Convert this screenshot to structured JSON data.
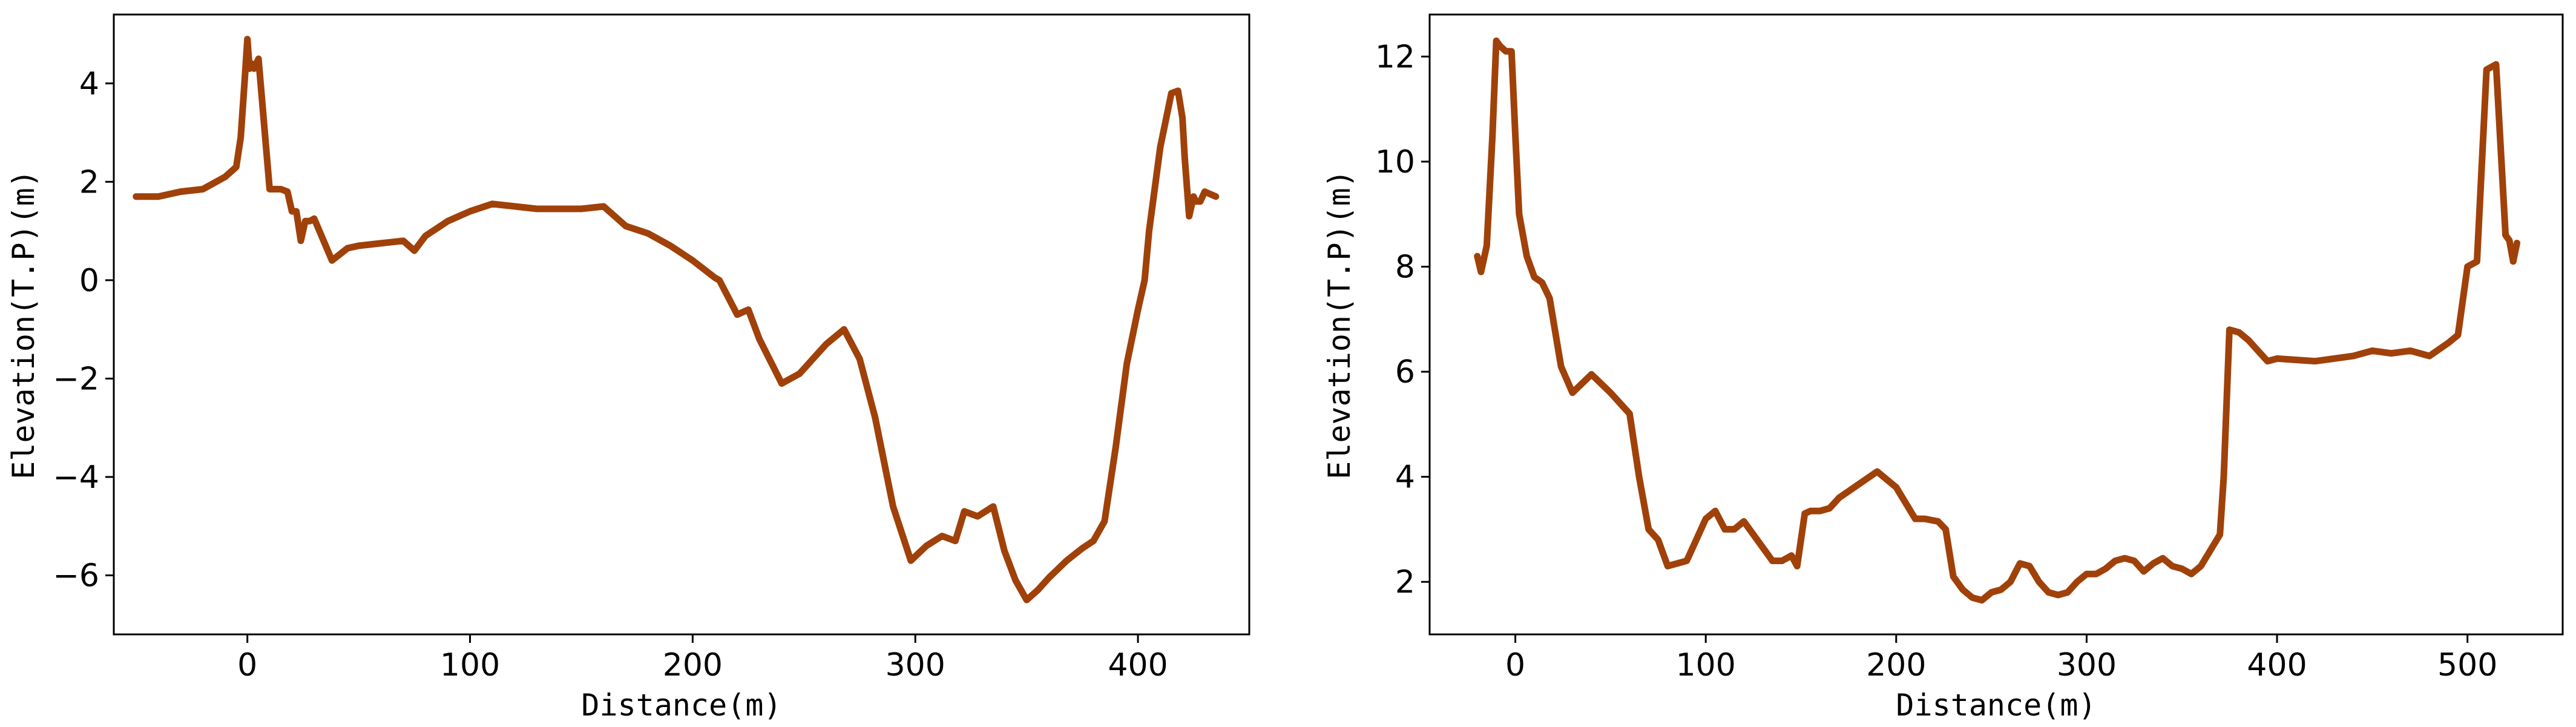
{
  "chart_data": [
    {
      "type": "line",
      "title": "",
      "xlabel": "Distance(m)",
      "ylabel": "Elevation(T.P)(m)",
      "xlim": [
        -60,
        450
      ],
      "ylim": [
        -7.2,
        5.4
      ],
      "xticks": [
        0,
        100,
        200,
        300,
        400
      ],
      "yticks": [
        -6,
        -4,
        -2,
        0,
        2,
        4
      ],
      "grid": false,
      "color": "#A0410A",
      "x": [
        -50,
        -40,
        -30,
        -20,
        -10,
        -5,
        -3,
        -1,
        0,
        1,
        2,
        3,
        5,
        10,
        15,
        18,
        20,
        22,
        24,
        26,
        28,
        30,
        38,
        45,
        50,
        60,
        70,
        75,
        80,
        90,
        100,
        110,
        130,
        150,
        160,
        170,
        180,
        190,
        200,
        210,
        212,
        220,
        225,
        230,
        240,
        248,
        255,
        260,
        268,
        275,
        282,
        290,
        298,
        305,
        312,
        318,
        322,
        328,
        335,
        340,
        345,
        350,
        355,
        360,
        368,
        375,
        380,
        385,
        390,
        395,
        400,
        403,
        405,
        410,
        415,
        418,
        420,
        421,
        423,
        425,
        426,
        428,
        430,
        435
      ],
      "y": [
        1.7,
        1.7,
        1.8,
        1.85,
        2.1,
        2.3,
        2.9,
        4.2,
        4.9,
        4.3,
        4.4,
        4.3,
        4.5,
        1.85,
        1.85,
        1.8,
        1.4,
        1.4,
        0.8,
        1.2,
        1.2,
        1.25,
        0.4,
        0.65,
        0.7,
        0.75,
        0.8,
        0.6,
        0.9,
        1.2,
        1.4,
        1.55,
        1.45,
        1.45,
        1.5,
        1.1,
        0.95,
        0.7,
        0.4,
        0.05,
        0.0,
        -0.7,
        -0.6,
        -1.2,
        -2.1,
        -1.9,
        -1.55,
        -1.3,
        -1.0,
        -1.6,
        -2.8,
        -4.6,
        -5.7,
        -5.4,
        -5.2,
        -5.3,
        -4.7,
        -4.8,
        -4.6,
        -5.5,
        -6.1,
        -6.5,
        -6.3,
        -6.05,
        -5.7,
        -5.45,
        -5.3,
        -4.9,
        -3.4,
        -1.7,
        -0.6,
        0.0,
        1.0,
        2.7,
        3.8,
        3.85,
        3.3,
        2.5,
        1.3,
        1.7,
        1.6,
        1.6,
        1.8,
        1.7
      ]
    },
    {
      "type": "line",
      "title": "",
      "xlabel": "Distance(m)",
      "ylabel": "Elevation(T.P)(m)",
      "xlim": [
        -45,
        550
      ],
      "ylim": [
        1.0,
        12.8
      ],
      "xticks": [
        0,
        100,
        200,
        300,
        400,
        500
      ],
      "yticks": [
        2,
        4,
        6,
        8,
        10,
        12
      ],
      "grid": false,
      "color": "#A0410A",
      "x": [
        -20,
        -18,
        -15,
        -12,
        -10,
        -8,
        -5,
        -2,
        0,
        2,
        6,
        10,
        14,
        18,
        24,
        30,
        40,
        50,
        60,
        65,
        70,
        75,
        80,
        85,
        90,
        95,
        100,
        105,
        110,
        115,
        120,
        125,
        130,
        135,
        140,
        145,
        148,
        152,
        155,
        160,
        165,
        170,
        180,
        190,
        200,
        205,
        210,
        215,
        222,
        226,
        230,
        235,
        240,
        245,
        250,
        255,
        260,
        265,
        270,
        275,
        280,
        285,
        290,
        295,
        300,
        305,
        310,
        315,
        320,
        325,
        330,
        335,
        340,
        345,
        350,
        355,
        360,
        365,
        370,
        372,
        375,
        380,
        385,
        390,
        395,
        400,
        420,
        440,
        450,
        460,
        470,
        480,
        490,
        495,
        500,
        505,
        510,
        515,
        520,
        522,
        524,
        526
      ],
      "y": [
        8.2,
        7.9,
        8.4,
        10.5,
        12.3,
        12.2,
        12.1,
        12.1,
        10.5,
        9.0,
        8.2,
        7.8,
        7.7,
        7.4,
        6.1,
        5.6,
        5.95,
        5.6,
        5.2,
        4.0,
        3.0,
        2.8,
        2.3,
        2.35,
        2.4,
        2.8,
        3.2,
        3.35,
        3.0,
        3.0,
        3.15,
        2.9,
        2.65,
        2.4,
        2.4,
        2.5,
        2.3,
        3.3,
        3.35,
        3.35,
        3.4,
        3.6,
        3.85,
        4.1,
        3.8,
        3.5,
        3.2,
        3.2,
        3.15,
        3.0,
        2.1,
        1.85,
        1.7,
        1.65,
        1.8,
        1.85,
        2.0,
        2.35,
        2.3,
        2.0,
        1.8,
        1.75,
        1.8,
        2.0,
        2.15,
        2.15,
        2.25,
        2.4,
        2.45,
        2.4,
        2.2,
        2.35,
        2.45,
        2.3,
        2.25,
        2.15,
        2.3,
        2.6,
        2.9,
        4.0,
        6.8,
        6.75,
        6.6,
        6.4,
        6.2,
        6.25,
        6.2,
        6.3,
        6.4,
        6.35,
        6.4,
        6.3,
        6.55,
        6.7,
        8.0,
        8.1,
        11.75,
        11.85,
        8.6,
        8.5,
        8.1,
        8.45
      ]
    }
  ]
}
